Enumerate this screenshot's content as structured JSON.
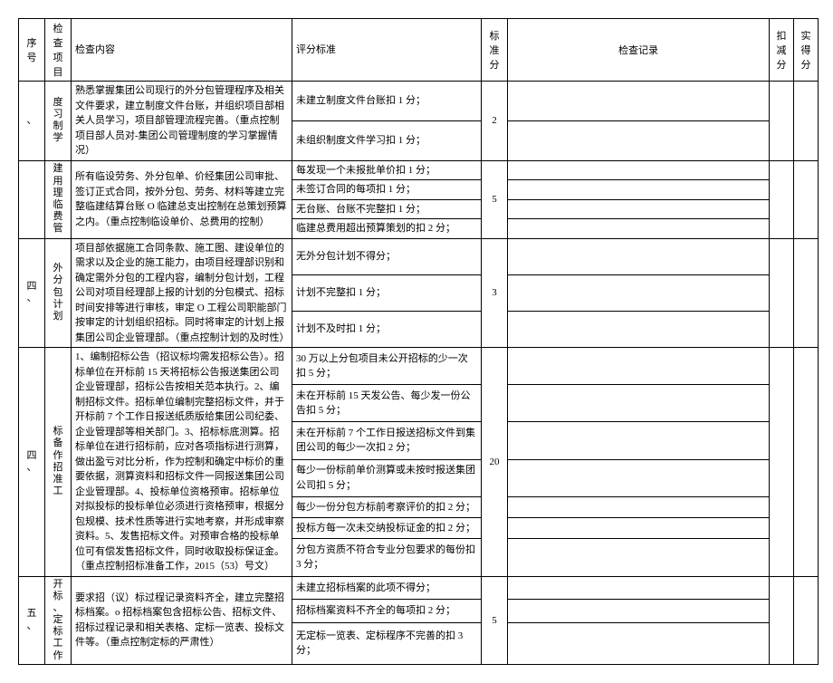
{
  "headers": {
    "seq": "序号",
    "item": "检查项目",
    "content": "检查内容",
    "criteria": "评分标准",
    "stdscore": "标准分",
    "record": "检查记录",
    "deduct": "扣减分",
    "actual": "实得分"
  },
  "rows": [
    {
      "seq": "、",
      "item": "度习制学",
      "content": "熟悉掌握集团公司现行的外分包管理程序及相关文件要求，建立制度文件台账，并组织项目部相关人员学习，项目部管理流程完善。（重点控制项目部人员对-集团公司管理制度的学习掌握情况）",
      "criteria": [
        "未建立制度文件台账扣 1 分；",
        "未组织制度文件学习扣 1 分；"
      ],
      "stdscore": "2"
    },
    {
      "seq": "",
      "item": "建用理临费管",
      "content": "所有临设劳务、外分包单、价经集团公司审批、签订正式合同，按外分包、劳务、材料等建立完整临建结算台账 O 临建总支出控制在总策划预算之内。（重点控制临设单价、总费用的控制）",
      "criteria": [
        "每发现一个未报批单价扣 1 分；",
        "未签订合同的每项扣 1 分；",
        "无台账、台账不完整扣 1 分；",
        "临建总费用超出预算策划的扣 2 分；"
      ],
      "stdscore": "5"
    },
    {
      "seq": "四、",
      "item": "外分包计划",
      "content": "项目部依据施工合同条款、施工图、建设单位的需求以及企业的施工能力，由项目经理部识别和确定需外分包的工程内容，编制分包计划，工程公司对项目经理部上报的计划的分包模式、招标时间安排等进行审核，审定 O 工程公司职能部门按审定的计划组织招标。同时将审定的计划上报集团公司企业管理部。（重点控制计划的及时性）",
      "criteria": [
        "无外分包计划不得分；",
        "计划不完整扣 1 分；",
        "计划不及时扣 1 分；"
      ],
      "stdscore": "3"
    },
    {
      "seq": "四、",
      "item": "标备作招准工",
      "content": "1、编制招标公告（招议标均需发招标公告）。招标单位在开标前 15 天将招标公告报送集团公司企业管理部，招标公告按相关范本执行。2、编制招标文件。招标单位编制完整招标文件，并于开标前 7 个工作日报送纸质版给集团公司纪委、企业管理部等相关部门。3、招标标底测算。招标单位在进行招标前，应对各项指标进行测算，做出盈亏对比分析，作为控制和确定中标价的重要依据，测算资料和招标文件一同报送集团公司企业管理部。4、投标单位资格预审。招标单位对拟投标的投标单位必须进行资格预审，根据分包规模、技术性质等进行实地考察，并形成审察资料。5、发售招标文件。对预审合格的投标单位可有偿发售招标文件，同时收取投标保证金。（重点控制招标准备工作，2015（53）号文）",
      "criteria": [
        "30 万以上分包项目未公开招标的少一次扣 5 分；",
        "未在开标前 15 天发公告、每少发一份公告扣 5 分；",
        "未在开标前 7 个工作日报送招标文件到集团公司的每少一次扣 2 分；",
        "每少一份标前单价测算或未按时报送集团公司扣 5 分；",
        "每少一份分包方标前考察评价的扣 2 分；",
        "投标方每一次未交纳投标证金的扣 2 分；",
        "分包方资质不符合专业分包要求的每份扣 3 分；"
      ],
      "stdscore": "20"
    },
    {
      "seq": "五、",
      "item": "开标、定标工作",
      "content": "要求招（议）标过程记录资料齐全，建立完整招标档案。o 招标档案包含招标公告、招标文件、招标过程记录和相关表格、定标一览表、投标文件等。（重点控制定标的严肃性）",
      "criteria": [
        "未建立招标档案的此项不得分；",
        "招标档案资料不齐全的每项扣 2 分；",
        "无定标一览表、定标程序不完善的扣 3 分；"
      ],
      "stdscore": "5"
    }
  ]
}
